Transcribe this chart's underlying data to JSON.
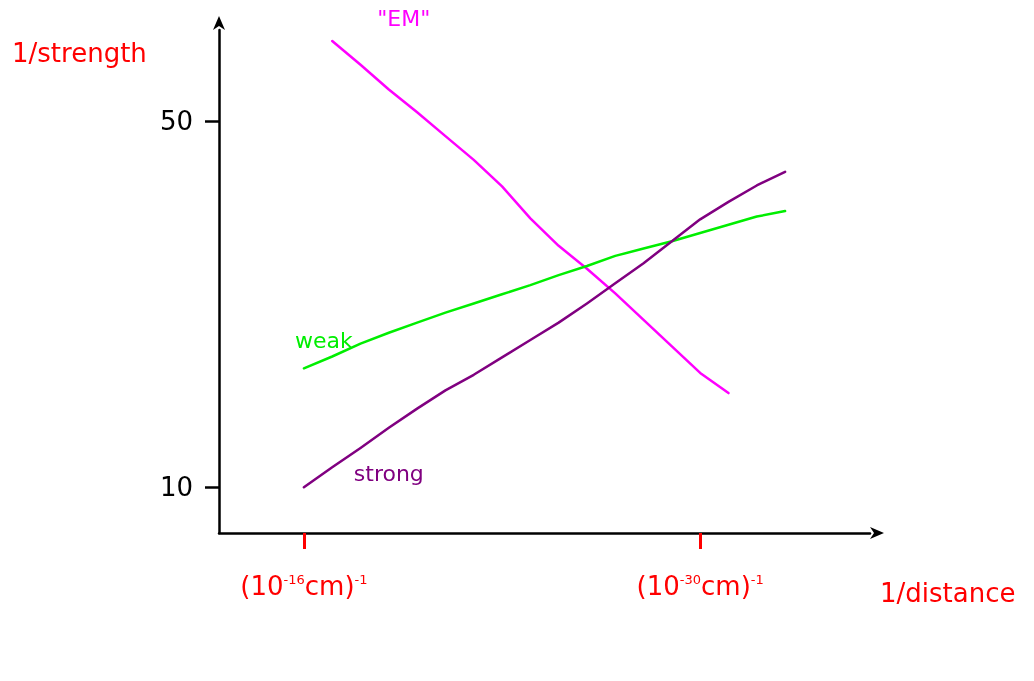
{
  "chart_data": {
    "type": "line",
    "ylabel": "1/strength",
    "xlabel": "1/distance",
    "categories": [
      null,
      null,
      null,
      "(10$^{-16}$cm)$^{-1}$",
      null,
      null,
      null,
      null,
      null,
      null,
      null,
      null,
      null,
      null,
      null,
      null,
      null,
      "(10$^{-30}$cm)$^{-1}$",
      null,
      null,
      null,
      null,
      null,
      null
    ],
    "ylim": [
      5,
      60
    ],
    "yticks": [
      10,
      50
    ],
    "grid": false,
    "legend": false,
    "marker": "none",
    "line_style": "solid",
    "series": [
      {
        "name": "\"EM\"",
        "color": "#ff00ff",
        "values": [
          null,
          null,
          null,
          null,
          58.8,
          56.2,
          53.5,
          51.0,
          48.4,
          45.8,
          42.9,
          39.4,
          36.4,
          33.9,
          31.2,
          28.3,
          25.4,
          22.5,
          20.3,
          null,
          null,
          null,
          null,
          null
        ]
      },
      {
        "name": "weak",
        "color": "#00ee00",
        "values": [
          null,
          null,
          null,
          23.0,
          24.3,
          25.7,
          26.9,
          28.0,
          29.1,
          30.1,
          31.1,
          32.1,
          33.2,
          34.2,
          35.3,
          36.1,
          36.9,
          37.8,
          38.7,
          39.6,
          40.2,
          null,
          null,
          null
        ]
      },
      {
        "name": "strong",
        "color": "#800080",
        "values": [
          null,
          null,
          null,
          10.0,
          12.2,
          14.3,
          16.5,
          18.6,
          20.6,
          22.3,
          24.2,
          26.1,
          28.0,
          30.1,
          32.3,
          34.5,
          36.9,
          39.3,
          41.2,
          43.0,
          44.5,
          null,
          null,
          null
        ]
      }
    ]
  }
}
